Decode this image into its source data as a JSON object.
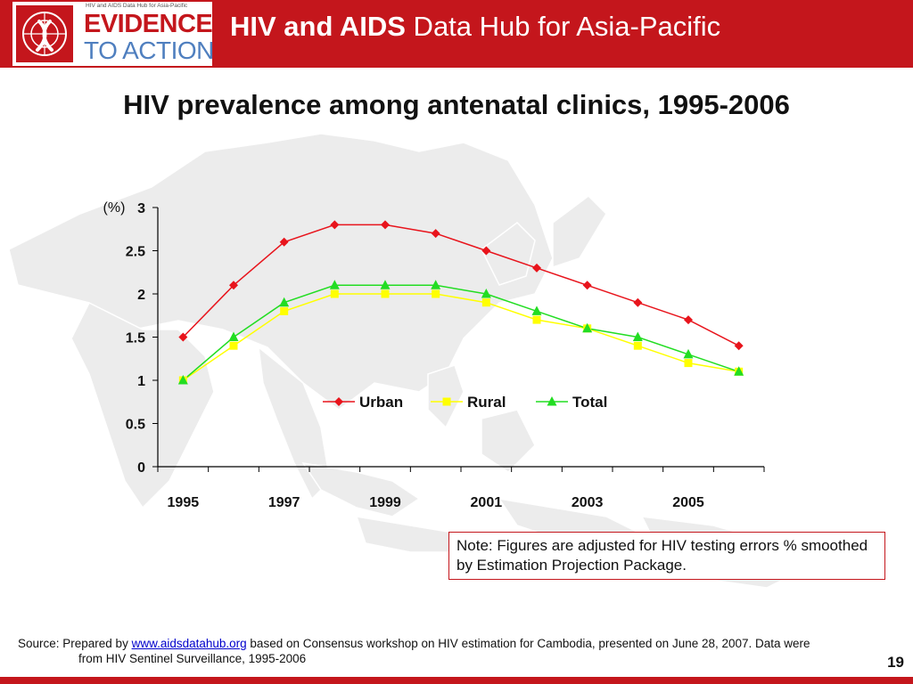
{
  "header": {
    "logo_small_text": "HIV and AIDS Data Hub for Asia-Pacific",
    "logo_line1": "EVIDENCE",
    "logo_line2": "TO ACTION",
    "title_bold": "HIV and AIDS",
    "title_rest": " Data Hub for Asia-Pacific"
  },
  "slide_title": "HIV prevalence among antenatal clinics, 1995-2006",
  "chart_data": {
    "type": "line",
    "title": "HIV prevalence among antenatal clinics, 1995-2006",
    "ylabel": "(%)",
    "xlabel": "",
    "x": [
      1995,
      1996,
      1997,
      1998,
      1999,
      2000,
      2001,
      2002,
      2003,
      2004,
      2005,
      2006
    ],
    "x_tick_labels": [
      "1995",
      "1997",
      "1999",
      "2001",
      "2003",
      "2005"
    ],
    "y_tick_labels": [
      "0",
      "0.5",
      "1",
      "1.5",
      "2",
      "2.5",
      "3"
    ],
    "ylim": [
      0,
      3
    ],
    "grid": false,
    "legend_position": "center",
    "series": [
      {
        "name": "Urban",
        "color": "#e8141c",
        "marker": "diamond",
        "values": [
          1.5,
          2.1,
          2.6,
          2.8,
          2.8,
          2.7,
          2.5,
          2.3,
          2.1,
          1.9,
          1.7,
          1.4
        ]
      },
      {
        "name": "Rural",
        "color": "#ffff00",
        "marker": "square",
        "values": [
          1.0,
          1.4,
          1.8,
          2.0,
          2.0,
          2.0,
          1.9,
          1.7,
          1.6,
          1.4,
          1.2,
          1.1
        ]
      },
      {
        "name": "Total",
        "color": "#22dd22",
        "marker": "triangle",
        "values": [
          1.0,
          1.5,
          1.9,
          2.1,
          2.1,
          2.1,
          2.0,
          1.8,
          1.6,
          1.5,
          1.3,
          1.1
        ]
      }
    ]
  },
  "note": "Note: Figures are adjusted for HIV testing errors % smoothed by Estimation Projection Package.",
  "source": {
    "prefix": "Source: Prepared by ",
    "link": "www.aidsdatahub.org",
    "suffix": "  based on Consensus workshop on HIV estimation for Cambodia, presented on June 28, 2007. Data were",
    "line2": "from HIV Sentinel Surveillance, 1995-2006"
  },
  "page_number": "19",
  "colors": {
    "brand_red": "#c4161c",
    "logo_blue": "#4f7fbf"
  }
}
